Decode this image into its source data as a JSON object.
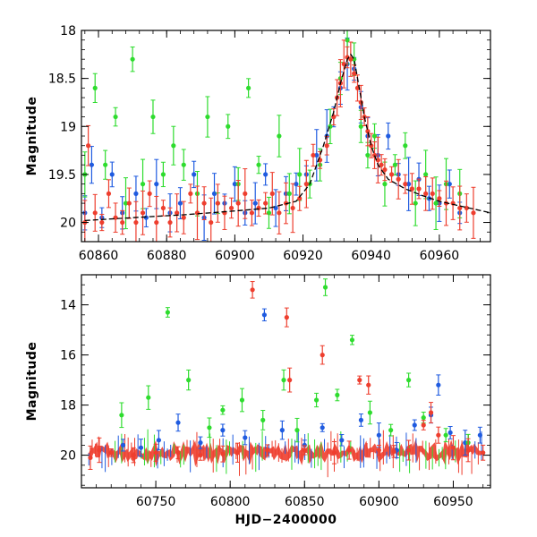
{
  "chart_data": [
    {
      "type": "scatter",
      "panel": "top",
      "title": "",
      "xlabel": "",
      "ylabel": "Magnitude",
      "xlim": [
        60855,
        60975
      ],
      "ylim": [
        20.2,
        18.0
      ],
      "y_inverted": true,
      "xticks": [
        60860,
        60880,
        60900,
        60920,
        60940,
        60960
      ],
      "xtick_labels": [
        "60860",
        "60880",
        "60900",
        "60920",
        "60940",
        "60960"
      ],
      "yticks": [
        18,
        18.5,
        19,
        19.5,
        20
      ],
      "ytick_labels": [
        "18",
        "18.5",
        "19",
        "19.5",
        "20"
      ],
      "series": [
        {
          "name": "blue",
          "color": "#1f5be0",
          "x": [
            60856,
            60858,
            60861,
            60864,
            60867,
            60871,
            60874,
            60877,
            60881,
            60884,
            60888,
            60891,
            60894,
            60897,
            60900,
            60903,
            60906,
            60909,
            60912,
            60915,
            60918,
            60921,
            60924,
            60927,
            60929,
            60931,
            60933,
            60935,
            60937,
            60939,
            60942,
            60945,
            60948,
            60951,
            60954,
            60957,
            60960,
            60963,
            60966
          ],
          "y": [
            19.9,
            19.4,
            19.95,
            19.5,
            19.9,
            19.7,
            19.95,
            19.6,
            19.9,
            19.8,
            19.5,
            19.95,
            19.7,
            19.8,
            19.6,
            19.9,
            19.8,
            19.5,
            19.85,
            19.7,
            19.6,
            19.5,
            19.3,
            19.1,
            18.9,
            18.6,
            18.35,
            18.4,
            18.8,
            19.1,
            19.3,
            19.1,
            19.5,
            19.6,
            19.55,
            19.75,
            19.8,
            19.6,
            19.9
          ]
        },
        {
          "name": "green",
          "color": "#2edc2e",
          "x": [
            60856,
            60859,
            60862,
            60865,
            60868,
            60870,
            60873,
            60876,
            60879,
            60882,
            60885,
            60889,
            60892,
            60895,
            60898,
            60901,
            60904,
            60907,
            60910,
            60913,
            60916,
            60919,
            60922,
            60925,
            60928,
            60931,
            60933,
            60935,
            60937,
            60939,
            60941,
            60944,
            60947,
            60950,
            60953,
            60956,
            60959,
            60962,
            60966
          ],
          "y": [
            19.5,
            18.6,
            19.4,
            18.9,
            19.8,
            18.3,
            19.6,
            18.9,
            19.5,
            19.2,
            19.4,
            19.7,
            18.9,
            19.8,
            19.0,
            19.6,
            18.6,
            19.4,
            19.9,
            19.1,
            19.7,
            19.5,
            19.6,
            19.4,
            19.0,
            18.5,
            18.1,
            18.3,
            19.0,
            19.3,
            19.1,
            19.6,
            19.4,
            19.2,
            19.8,
            19.5,
            19.8,
            19.6,
            19.7
          ]
        },
        {
          "name": "red",
          "color": "#ee3e2e",
          "x": [
            60856,
            60857,
            60859,
            60861,
            60863,
            60865,
            60867,
            60869,
            60871,
            60873,
            60875,
            60877,
            60879,
            60881,
            60883,
            60885,
            60887,
            60889,
            60891,
            60893,
            60895,
            60897,
            60899,
            60901,
            60903,
            60905,
            60907,
            60909,
            60911,
            60913,
            60915,
            60917,
            60919,
            60921,
            60923,
            60925,
            60927,
            60929,
            60930,
            60931,
            60932,
            60933,
            60934,
            60935,
            60936,
            60937,
            60938,
            60939,
            60940,
            60941,
            60942,
            60943,
            60944,
            60946,
            60948,
            60950,
            60952,
            60954,
            60956,
            60958,
            60960,
            60962,
            60964,
            60966,
            60968,
            60970
          ],
          "y": [
            20.0,
            19.2,
            19.9,
            20.0,
            19.7,
            19.95,
            20.0,
            19.8,
            20.0,
            19.9,
            19.7,
            20.0,
            19.85,
            20.0,
            19.9,
            19.95,
            19.7,
            19.9,
            19.8,
            20.0,
            19.8,
            19.9,
            19.85,
            19.8,
            19.7,
            19.9,
            19.85,
            19.8,
            19.7,
            19.9,
            19.8,
            19.85,
            19.75,
            19.6,
            19.3,
            19.35,
            19.2,
            18.9,
            18.7,
            18.55,
            18.35,
            18.28,
            18.3,
            18.45,
            18.6,
            18.75,
            18.9,
            19.05,
            19.2,
            19.3,
            19.35,
            19.4,
            19.45,
            19.5,
            19.55,
            19.6,
            19.65,
            19.65,
            19.7,
            19.7,
            19.75,
            19.8,
            19.8,
            19.85,
            19.85,
            19.9
          ]
        }
      ],
      "model_curve": {
        "name": "model",
        "color": "#000000",
        "x": [
          60856,
          60870,
          60885,
          60900,
          60910,
          60918,
          60922,
          60926,
          60929,
          60931,
          60933,
          60934,
          60935,
          60936,
          60938,
          60940,
          60942,
          60945,
          60950,
          60955,
          60960,
          60965,
          60970,
          60975
        ],
        "y": [
          19.98,
          19.95,
          19.92,
          19.88,
          19.85,
          19.78,
          19.6,
          19.2,
          18.85,
          18.55,
          18.3,
          18.25,
          18.3,
          18.5,
          18.9,
          19.2,
          19.4,
          19.55,
          19.65,
          19.72,
          19.78,
          19.82,
          19.86,
          19.9
        ]
      }
    },
    {
      "type": "scatter",
      "panel": "bottom",
      "title": "",
      "xlabel": "HJD−2400000",
      "ylabel": "Magnitude",
      "xlim": [
        60700,
        60975
      ],
      "ylim": [
        21.3,
        12.8
      ],
      "y_inverted": true,
      "xticks": [
        60750,
        60800,
        60850,
        60900,
        60950
      ],
      "xtick_labels": [
        "60750",
        "60800",
        "60850",
        "60900",
        "60950"
      ],
      "yticks": [
        14,
        16,
        18,
        20
      ],
      "ytick_labels": [
        "14",
        "16",
        "18",
        "20"
      ],
      "series": [
        {
          "name": "blue",
          "color": "#1f5be0",
          "x": [
            60728,
            60740,
            60752,
            60765,
            60780,
            60795,
            60810,
            60823,
            60835,
            60850,
            60862,
            60875,
            60888,
            60900,
            60912,
            60924,
            60935,
            60940,
            60948,
            60958,
            60968
          ],
          "y": [
            19.6,
            19.7,
            19.4,
            18.7,
            19.5,
            19.0,
            19.3,
            14.4,
            19.0,
            19.6,
            18.9,
            19.4,
            18.6,
            19.2,
            19.8,
            18.8,
            18.4,
            17.2,
            19.1,
            19.5,
            19.2
          ]
        },
        {
          "name": "green",
          "color": "#2edc2e",
          "x": [
            60727,
            60745,
            60758,
            60772,
            60786,
            60795,
            60808,
            60822,
            60836,
            60845,
            60858,
            60864,
            60872,
            60882,
            60894,
            60908,
            60920,
            60930,
            60945,
            60960
          ],
          "y": [
            18.4,
            17.7,
            14.3,
            17.0,
            18.9,
            18.2,
            17.8,
            18.6,
            17.0,
            19.0,
            17.8,
            13.3,
            17.6,
            15.4,
            18.3,
            19.0,
            17.0,
            18.5,
            19.2,
            19.5
          ]
        },
        {
          "name": "red",
          "color": "#ee3e2e",
          "x": [
            60706,
            60712,
            60720,
            60735,
            60750,
            60765,
            60780,
            60795,
            60805,
            60815,
            60825,
            60838,
            60840,
            60850,
            60862,
            60870,
            60880,
            60887,
            60893,
            60900,
            60910,
            60920,
            60930,
            60935,
            60940,
            60950,
            60960,
            60970
          ],
          "y": [
            20.1,
            19.8,
            19.9,
            20.0,
            19.9,
            19.9,
            20.0,
            19.95,
            19.9,
            13.4,
            19.8,
            14.5,
            17.0,
            19.8,
            16.0,
            19.9,
            19.8,
            17.0,
            17.2,
            19.8,
            19.85,
            19.8,
            18.8,
            18.3,
            19.2,
            19.7,
            19.8,
            19.9
          ]
        }
      ],
      "baseline": {
        "color": "#ee3e2e",
        "x_range": [
          60705,
          60970
        ],
        "y": 19.9
      }
    }
  ]
}
